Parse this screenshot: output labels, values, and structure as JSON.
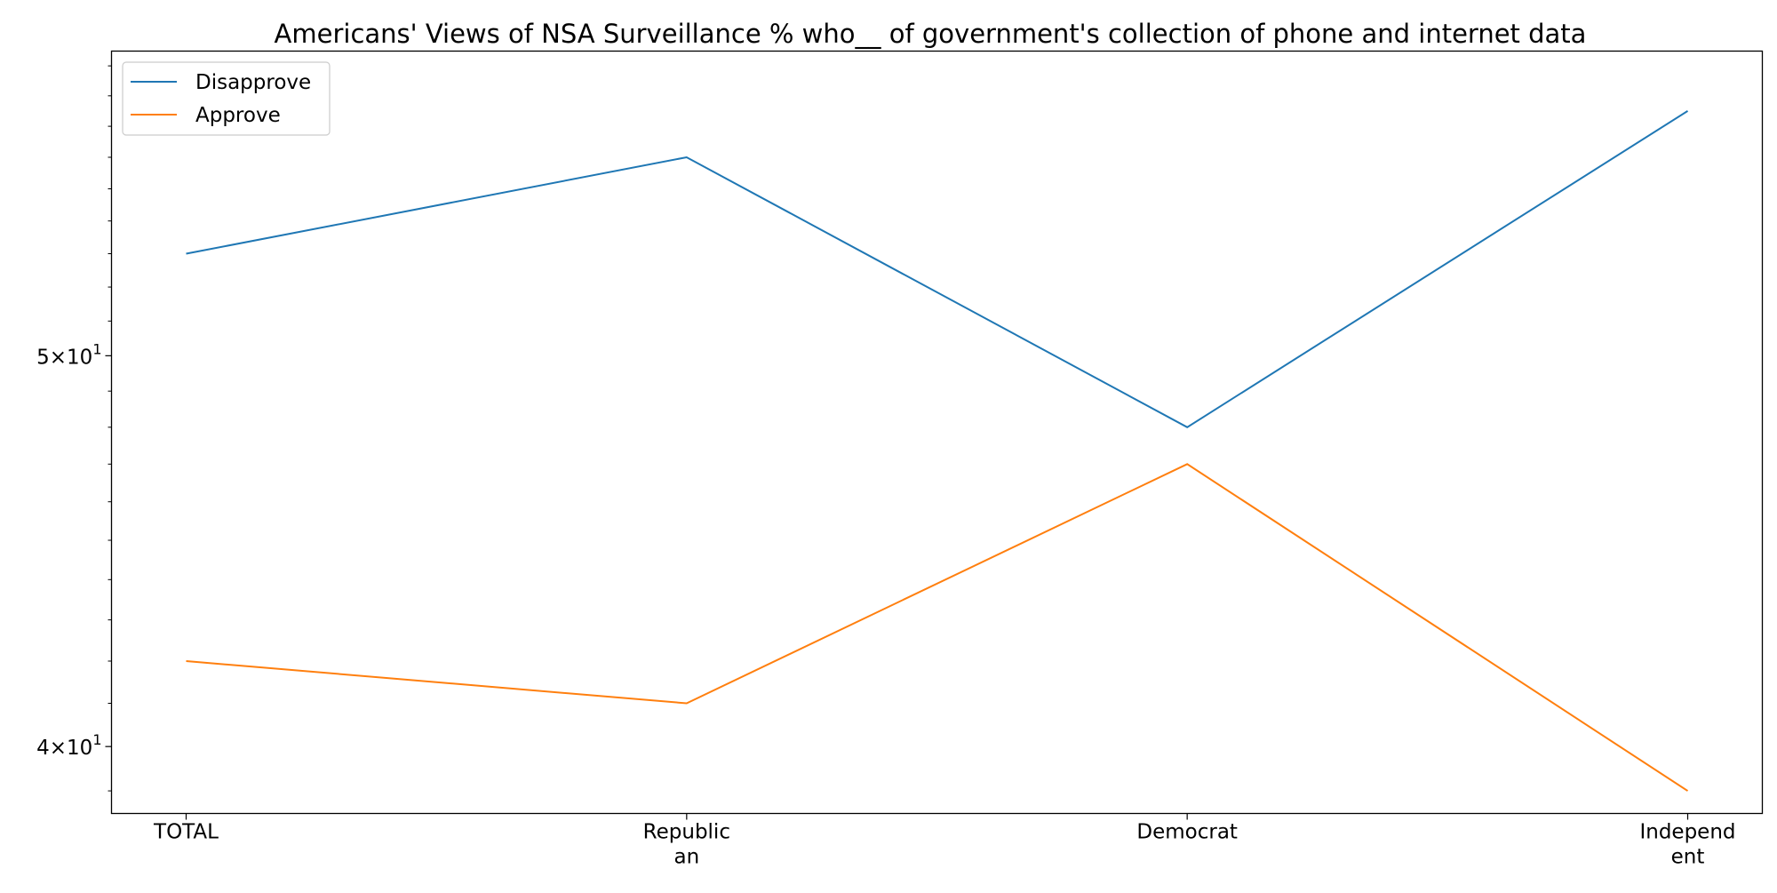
{
  "chart_data": {
    "type": "line",
    "title": "Americans' Views of NSA Surveillance % who__ of government's collection of phone and internet data",
    "xlabel": "",
    "ylabel": "",
    "y_scale": "log",
    "ylim": [
      38.5,
      59.5
    ],
    "categories": [
      "TOTAL",
      "Republican",
      "Democrat",
      "Independent"
    ],
    "category_labels": [
      [
        "TOTAL"
      ],
      [
        "Republic",
        "an"
      ],
      [
        "Democrat"
      ],
      [
        "Independ",
        "ent"
      ]
    ],
    "series": [
      {
        "name": "Disapprove",
        "color": "#1f77b4",
        "values": [
          53,
          56,
          48,
          57.5
        ]
      },
      {
        "name": "Approve",
        "color": "#ff7f0e",
        "values": [
          42,
          41,
          47,
          39
        ]
      }
    ],
    "y_ticks": [
      {
        "value": 50,
        "mantissa": "5",
        "exponent": "1"
      },
      {
        "value": 40,
        "mantissa": "4",
        "exponent": "1"
      }
    ],
    "legend_position": "upper left",
    "grid": false
  }
}
